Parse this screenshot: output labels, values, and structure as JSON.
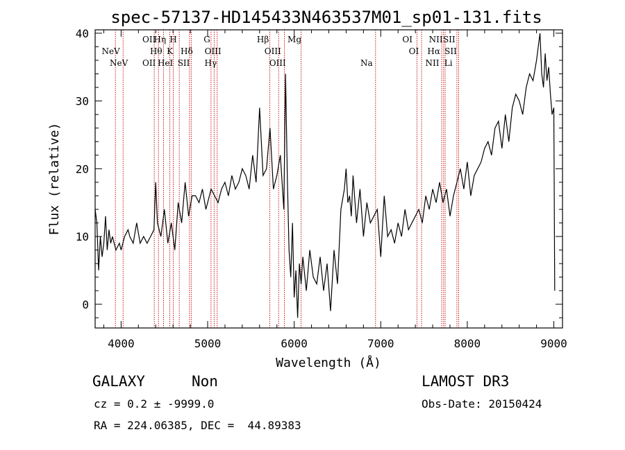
{
  "chart_data": {
    "type": "line",
    "title": "spec-57137-HD145433N463537M01_sp01-131.fits",
    "xlabel": "Wavelength (Å)",
    "ylabel": "Flux (relative)",
    "xlim": [
      3700,
      9100
    ],
    "ylim": [
      -3.5,
      40.5
    ],
    "xticks": [
      4000,
      5000,
      6000,
      7000,
      8000,
      9000
    ],
    "yticks": [
      0,
      10,
      20,
      30,
      40
    ],
    "xtick_labels": [
      "4000",
      "5000",
      "6000",
      "7000",
      "8000",
      "9000"
    ],
    "ytick_labels": [
      "0",
      "10",
      "20",
      "30",
      "40"
    ],
    "series": [
      {
        "x": [
          3700,
          3720,
          3740,
          3760,
          3780,
          3800,
          3820,
          3840,
          3860,
          3880,
          3900,
          3940,
          3980,
          4000,
          4040,
          4080,
          4100,
          4140,
          4180,
          4220,
          4260,
          4300,
          4340,
          4380,
          4400,
          4420,
          4460,
          4500,
          4540,
          4580,
          4620,
          4660,
          4700,
          4740,
          4780,
          4820,
          4860,
          4900,
          4940,
          4980,
          5000,
          5040,
          5080,
          5120,
          5160,
          5200,
          5240,
          5280,
          5320,
          5360,
          5400,
          5440,
          5480,
          5520,
          5560,
          5600,
          5640,
          5680,
          5720,
          5760,
          5800,
          5840,
          5880,
          5900,
          5920,
          5940,
          5960,
          5980,
          6000,
          6020,
          6040,
          6060,
          6080,
          6100,
          6140,
          6180,
          6220,
          6260,
          6300,
          6340,
          6380,
          6420,
          6460,
          6500,
          6540,
          6580,
          6600,
          6620,
          6640,
          6660,
          6680,
          6720,
          6760,
          6800,
          6840,
          6880,
          6920,
          6960,
          7000,
          7040,
          7080,
          7120,
          7160,
          7200,
          7240,
          7280,
          7320,
          7360,
          7400,
          7440,
          7480,
          7520,
          7560,
          7600,
          7640,
          7680,
          7720,
          7760,
          7800,
          7840,
          7880,
          7920,
          7960,
          8000,
          8040,
          8080,
          8120,
          8160,
          8200,
          8240,
          8280,
          8320,
          8360,
          8400,
          8440,
          8480,
          8520,
          8560,
          8600,
          8640,
          8680,
          8720,
          8760,
          8800,
          8820,
          8840,
          8860,
          8880,
          8900,
          8920,
          8940,
          8960,
          8980,
          9000,
          9010
        ],
        "y": [
          14,
          12,
          5,
          10,
          7,
          9,
          13,
          8,
          11,
          9,
          10,
          8,
          9,
          8,
          10,
          11,
          10,
          9,
          12,
          9,
          10,
          9,
          10,
          11,
          18,
          12,
          10,
          14,
          9,
          12,
          8,
          15,
          12,
          18,
          13,
          16,
          16,
          15,
          17,
          14,
          15,
          17,
          16,
          15,
          17,
          18,
          16,
          19,
          17,
          18,
          20,
          19,
          17,
          22,
          18,
          29,
          19,
          20,
          26,
          17,
          19,
          22,
          14,
          34,
          19,
          8,
          4,
          12,
          1,
          5,
          -2,
          6,
          3,
          7,
          2,
          8,
          4,
          3,
          7,
          2,
          6,
          -1,
          8,
          3,
          14,
          17,
          20,
          15,
          16,
          13,
          19,
          12,
          17,
          10,
          15,
          12,
          13,
          14,
          7,
          16,
          10,
          11,
          9,
          12,
          10,
          14,
          11,
          12,
          13,
          14,
          12,
          16,
          14,
          17,
          15,
          18,
          15,
          17,
          13,
          16,
          18,
          20,
          17,
          21,
          16,
          19,
          20,
          21,
          23,
          24,
          22,
          26,
          27,
          23,
          28,
          24,
          29,
          31,
          30,
          28,
          32,
          34,
          33,
          36,
          38,
          40,
          34,
          32,
          37,
          33,
          35,
          31,
          28,
          29,
          2
        ]
      }
    ],
    "annotations": [
      {
        "label": "NeV",
        "x": 3426,
        "row": 3
      },
      {
        "label": "NeV",
        "x": 3346,
        "row": 2
      },
      {
        "label": "OII",
        "x": 3727,
        "row": 1
      },
      {
        "label": "Hη",
        "x": 3835,
        "row": 1
      },
      {
        "label": "H",
        "x": 3968,
        "row": 1
      },
      {
        "label": "Hθ",
        "x": 3797,
        "row": 2
      },
      {
        "label": "K",
        "x": 3934,
        "row": 2
      },
      {
        "label": "OII",
        "x": 3727,
        "row": 3
      },
      {
        "label": "HeI",
        "x": 3889,
        "row": 3
      },
      {
        "label": "Hδ",
        "x": 4102,
        "row": 2
      },
      {
        "label": "SII",
        "x": 4072,
        "row": 3
      },
      {
        "label": "G",
        "x": 4304,
        "row": 1
      },
      {
        "label": "OIII",
        "x": 4363,
        "row": 2
      },
      {
        "label": "Hγ",
        "x": 4340,
        "row": 3
      },
      {
        "label": "Hβ",
        "x": 4861,
        "row": 1
      },
      {
        "label": "Mg",
        "x": 5175,
        "row": 1
      },
      {
        "label": "OIII",
        "x": 4959,
        "row": 2
      },
      {
        "label": "OIII",
        "x": 5007,
        "row": 3
      },
      {
        "label": "Na",
        "x": 5893,
        "row": 3
      },
      {
        "label": "OI",
        "x": 6300,
        "row": 1
      },
      {
        "label": "OI",
        "x": 6364,
        "row": 2
      },
      {
        "label": "NII",
        "x": 6583,
        "row": 1
      },
      {
        "label": "SII",
        "x": 6716,
        "row": 1
      },
      {
        "label": "Hα",
        "x": 6563,
        "row": 2
      },
      {
        "label": "SII",
        "x": 6731,
        "row": 2
      },
      {
        "label": "NII",
        "x": 6548,
        "row": 3
      },
      {
        "label": "Li",
        "x": 6708,
        "row": 3
      }
    ],
    "line_positions": [
      3934,
      4023,
      4383,
      4432,
      4490,
      4562,
      4603,
      4672,
      4790,
      4810,
      5039,
      5075,
      5110,
      5718,
      5820,
      5886,
      6080,
      6940,
      7418,
      7472,
      7704,
      7726,
      7744,
      7880,
      7900
    ]
  },
  "info": {
    "object_class": "GALAXY",
    "subclass": "Non",
    "survey": "LAMOST DR3",
    "cz": "cz = 0.2 ± -9999.0",
    "obs_date": "Obs-Date: 20150424",
    "radec": "RA = 224.06385, DEC =  44.89383"
  },
  "colors": {
    "spectrum": "#000000",
    "line_marker": "#c00000"
  }
}
